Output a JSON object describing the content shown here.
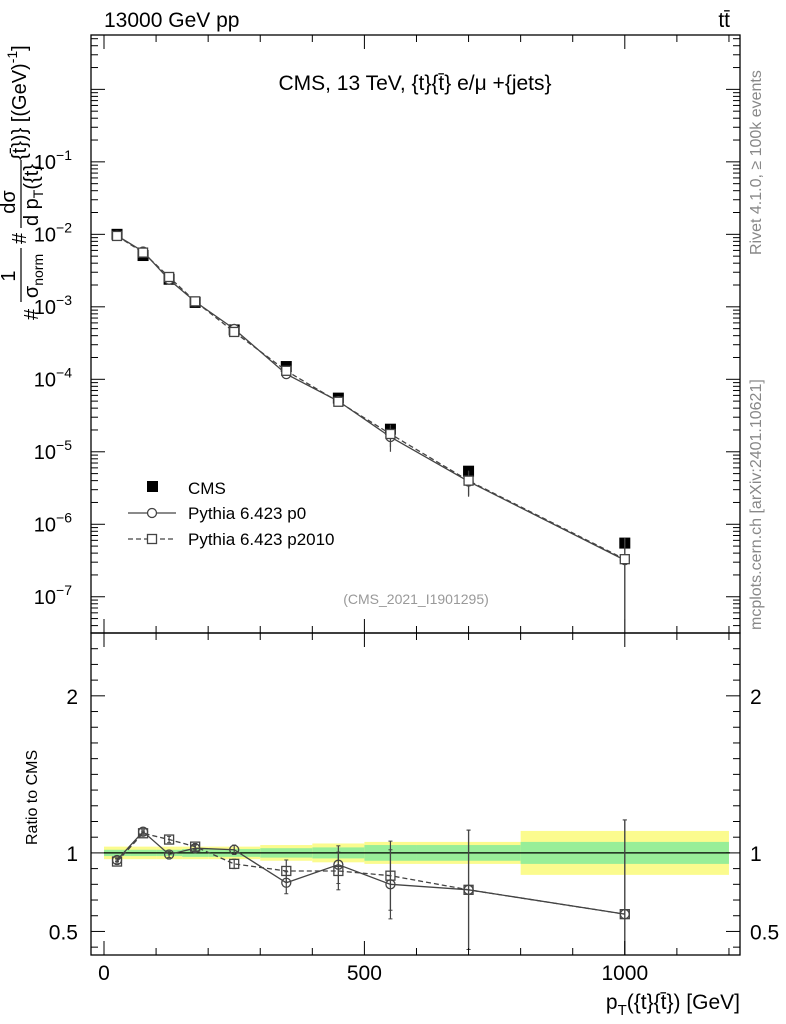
{
  "header": {
    "energy_label": "13000 GeV pp",
    "process_label": "tt̄"
  },
  "side_labels": {
    "rivet": "Rivet 4.1.0, ≥ 100k events",
    "site": "mcplots.cern.ch [arXiv:2401.10621]"
  },
  "chart_data": [
    {
      "type": "scatter",
      "panel": "main",
      "title": "CMS, 13 TeV, {t}{t̄} e/μ +{jets}",
      "analysis_id": "(CMS_2021_I1901295)",
      "ylabel_parts": {
        "prefix": "#",
        "frac_num": "1",
        "frac_den": "σ",
        "frac_den_sub": "norm",
        "mid": "#",
        "diff_num": "dσ",
        "diff_den": "d p",
        "diff_den_sub": "T",
        "diff_den_tail": "({t}",
        "suffix": "{t̄})} [(GeV)",
        "suffix_sup": "-1",
        "suffix_end": "]"
      },
      "xlim": [
        -25,
        1225
      ],
      "ylim_log10": [
        -7.5,
        0.75
      ],
      "y_scale": "log",
      "y_ticks": [
        {
          "exp": -1,
          "label_base": "10",
          "label_exp": "−1"
        },
        {
          "exp": -2,
          "label_base": "10",
          "label_exp": "−2"
        },
        {
          "exp": -3,
          "label_base": "10",
          "label_exp": "−3"
        },
        {
          "exp": -4,
          "label_base": "10",
          "label_exp": "−4"
        },
        {
          "exp": -5,
          "label_base": "10",
          "label_exp": "−5"
        },
        {
          "exp": -6,
          "label_base": "10",
          "label_exp": "−6"
        },
        {
          "exp": -7,
          "label_base": "10",
          "label_exp": "−7"
        }
      ],
      "legend": [
        {
          "label": "CMS",
          "marker": "filled-square"
        },
        {
          "label": "Pythia 6.423 p0",
          "marker": "open-circle",
          "line": "solid"
        },
        {
          "label": "Pythia 6.423 p2010",
          "marker": "open-square",
          "line": "dashed"
        }
      ],
      "series": [
        {
          "name": "CMS",
          "x": [
            25,
            75,
            125,
            175,
            250,
            350,
            450,
            550,
            700,
            1000
          ],
          "y": [
            0.01,
            0.0051,
            0.0024,
            0.00115,
            0.00048,
            0.00015,
            5.5e-05,
            2.05e-05,
            5.4e-06,
            5.5e-07
          ]
        },
        {
          "name": "Pythia 6.423 p0",
          "x": [
            25,
            75,
            125,
            175,
            250,
            350,
            450,
            550,
            700,
            1000
          ],
          "y": [
            0.0096,
            0.0058,
            0.00237,
            0.00118,
            0.000495,
            0.000118,
            5e-05,
            1.6e-05,
            3.9e-06,
            3.2e-07
          ],
          "err_lo": [
            0.0001,
            0.0001,
            5e-05,
            3e-05,
            2e-05,
            5e-06,
            4e-06,
            6e-06,
            1.5e-06,
            3.1e-07
          ],
          "err_hi": [
            0.0001,
            0.0001,
            5e-05,
            3e-05,
            2e-05,
            5e-06,
            4e-06,
            6e-06,
            1.5e-06,
            3.1e-07
          ]
        },
        {
          "name": "Pythia 6.423 p2010",
          "x": [
            25,
            75,
            125,
            175,
            250,
            350,
            450,
            550,
            700,
            1000
          ],
          "y": [
            0.0095,
            0.0056,
            0.00258,
            0.00119,
            0.00045,
            0.000131,
            4.9e-05,
            1.76e-05,
            4e-06,
            3.3e-07
          ],
          "err_lo": [
            0.0001,
            0.0001,
            5e-05,
            3e-05,
            2e-05,
            5e-06,
            4e-06,
            6e-06,
            1.5e-06,
            3.2e-07
          ],
          "err_hi": [
            0.0001,
            0.0001,
            5e-05,
            3e-05,
            2e-05,
            5e-06,
            4e-06,
            6e-06,
            1.5e-06,
            3.2e-07
          ]
        }
      ]
    },
    {
      "type": "scatter",
      "panel": "ratio",
      "ylabel": "Ratio to CMS",
      "xlabel_parts": {
        "p": "p",
        "sub": "T",
        "rest": "({t}{t̄}) [GeV]"
      },
      "xlim": [
        -25,
        1225
      ],
      "ylim": [
        0.35,
        2.4
      ],
      "x_ticks": [
        0,
        500,
        1000
      ],
      "x_tick_labels": [
        "0",
        "500",
        "1000"
      ],
      "y_ticks": [
        0.5,
        1,
        2
      ],
      "y_tick_labels": [
        "0.5",
        "1",
        "2"
      ],
      "bands": {
        "edges": [
          0,
          50,
          100,
          150,
          200,
          300,
          400,
          500,
          600,
          800,
          1200
        ],
        "green_half": [
          0.02,
          0.02,
          0.02,
          0.025,
          0.025,
          0.03,
          0.035,
          0.05,
          0.05,
          0.07
        ],
        "yellow_half": [
          0.04,
          0.04,
          0.04,
          0.04,
          0.04,
          0.05,
          0.06,
          0.07,
          0.07,
          0.14
        ]
      },
      "series": [
        {
          "name": "Pythia 6.423 p0",
          "x": [
            25,
            75,
            125,
            175,
            250,
            350,
            450,
            550,
            700,
            1000
          ],
          "y": [
            0.955,
            1.135,
            0.99,
            1.03,
            1.02,
            0.81,
            0.925,
            0.8,
            0.765,
            0.61
          ],
          "err": [
            0.01,
            0.01,
            0.02,
            0.02,
            0.03,
            0.07,
            0.12,
            0.22,
            0.38,
            0.6
          ]
        },
        {
          "name": "Pythia 6.423 p2010",
          "x": [
            25,
            75,
            125,
            175,
            250,
            350,
            450,
            550,
            700,
            1000
          ],
          "y": [
            0.945,
            1.125,
            1.085,
            1.04,
            0.93,
            0.885,
            0.885,
            0.855,
            0.765,
            0.61
          ],
          "err": [
            0.01,
            0.01,
            0.02,
            0.02,
            0.03,
            0.07,
            0.12,
            0.22,
            0.38,
            0.6
          ]
        }
      ]
    }
  ]
}
